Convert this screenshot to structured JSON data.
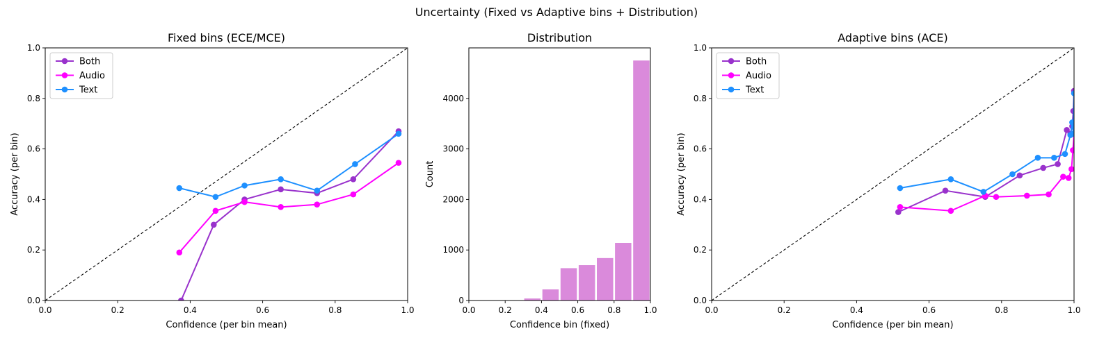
{
  "figure_title": "Uncertainty (Fixed vs Adaptive bins + Distribution)",
  "colors": {
    "Both": "#9932CC",
    "Audio": "#FF00FF",
    "Text": "#1E90FF",
    "bars": "#DA8ADB",
    "diagonal": "#000000"
  },
  "chart_data": [
    {
      "type": "line",
      "title": "Fixed bins (ECE/MCE)",
      "xlabel": "Confidence (per bin mean)",
      "ylabel": "Accuracy (per bin)",
      "xlim": [
        0,
        1
      ],
      "ylim": [
        0,
        1
      ],
      "xticks": [
        "0.0",
        "0.2",
        "0.4",
        "0.6",
        "0.8",
        "1.0"
      ],
      "yticks": [
        "0.0",
        "0.2",
        "0.4",
        "0.6",
        "0.8",
        "1.0"
      ],
      "grid": false,
      "legend_position": "top-left",
      "diagonal": true,
      "series": [
        {
          "name": "Both",
          "x": [
            0.375,
            0.465,
            0.55,
            0.65,
            0.75,
            0.85,
            0.975
          ],
          "y": [
            0.0,
            0.3,
            0.4,
            0.44,
            0.425,
            0.48,
            0.67
          ]
        },
        {
          "name": "Audio",
          "x": [
            0.37,
            0.47,
            0.55,
            0.65,
            0.75,
            0.85,
            0.975
          ],
          "y": [
            0.19,
            0.355,
            0.39,
            0.37,
            0.38,
            0.42,
            0.545
          ]
        },
        {
          "name": "Text",
          "x": [
            0.37,
            0.47,
            0.55,
            0.65,
            0.75,
            0.855,
            0.975
          ],
          "y": [
            0.445,
            0.41,
            0.455,
            0.48,
            0.435,
            0.54,
            0.66
          ]
        }
      ]
    },
    {
      "type": "bar",
      "title": "Distribution",
      "xlabel": "Confidence bin (fixed)",
      "ylabel": "Count",
      "xlim": [
        0,
        1
      ],
      "ylim": [
        0,
        5000
      ],
      "xticks": [
        "0.0",
        "0.2",
        "0.4",
        "0.6",
        "0.8",
        "1.0"
      ],
      "yticks": [
        "0",
        "1000",
        "2000",
        "3000",
        "4000"
      ],
      "grid": false,
      "bins": [
        0.3,
        0.4,
        0.5,
        0.6,
        0.7,
        0.8,
        0.9
      ],
      "bin_width": 0.1,
      "values": [
        40,
        220,
        640,
        700,
        840,
        1140,
        4750
      ]
    },
    {
      "type": "line",
      "title": "Adaptive bins (ACE)",
      "xlabel": "Confidence (per bin mean)",
      "ylabel": "Accuracy (per bin)",
      "xlim": [
        0,
        1
      ],
      "ylim": [
        0,
        1
      ],
      "xticks": [
        "0.0",
        "0.2",
        "0.4",
        "0.6",
        "0.8",
        "1.0"
      ],
      "yticks": [
        "0.0",
        "0.2",
        "0.4",
        "0.6",
        "0.8",
        "1.0"
      ],
      "grid": false,
      "legend_position": "top-left",
      "diagonal": true,
      "series": [
        {
          "name": "Both",
          "x": [
            0.515,
            0.645,
            0.755,
            0.85,
            0.915,
            0.955,
            0.98,
            0.99,
            0.995,
            0.998,
            1.0
          ],
          "y": [
            0.35,
            0.435,
            0.41,
            0.495,
            0.525,
            0.54,
            0.675,
            0.66,
            0.69,
            0.75,
            0.83
          ]
        },
        {
          "name": "Audio",
          "x": [
            0.52,
            0.66,
            0.755,
            0.785,
            0.87,
            0.93,
            0.97,
            0.985,
            0.993,
            0.997,
            1.0
          ],
          "y": [
            0.37,
            0.355,
            0.415,
            0.41,
            0.415,
            0.42,
            0.49,
            0.485,
            0.52,
            0.595,
            0.66
          ]
        },
        {
          "name": "Text",
          "x": [
            0.52,
            0.66,
            0.75,
            0.83,
            0.9,
            0.945,
            0.975,
            0.99,
            0.995,
            0.998,
            1.0
          ],
          "y": [
            0.445,
            0.48,
            0.43,
            0.5,
            0.565,
            0.565,
            0.58,
            0.655,
            0.705,
            0.66,
            0.82
          ]
        }
      ]
    }
  ]
}
